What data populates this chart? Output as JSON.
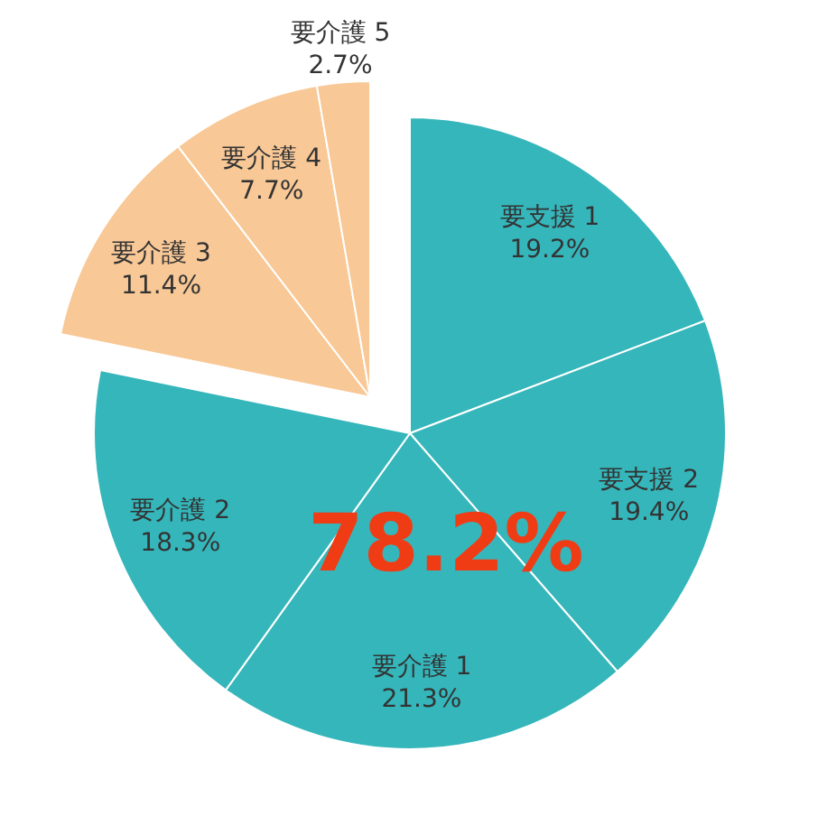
{
  "chart_data": {
    "type": "pie",
    "categories": [
      "要支援 1",
      "要支援 2",
      "要介護 1",
      "要介護 2",
      "要介護 3",
      "要介護 4",
      "要介護 5"
    ],
    "values": [
      19.2,
      19.4,
      21.3,
      18.3,
      11.4,
      7.7,
      2.7
    ],
    "value_labels": [
      "19.2%",
      "19.4%",
      "21.3%",
      "18.3%",
      "11.4%",
      "7.7%",
      "2.7%"
    ],
    "colors": [
      "#35b6bb",
      "#35b6bb",
      "#35b6bb",
      "#35b6bb",
      "#f8c896",
      "#f8c896",
      "#f8c896"
    ],
    "annotations": [
      {
        "text": "78.2%"
      }
    ],
    "legend": false
  }
}
